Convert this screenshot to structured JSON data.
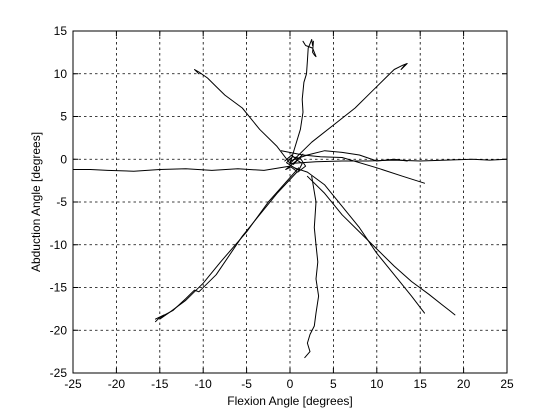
{
  "chart_data": {
    "type": "line",
    "title": "",
    "xlabel": "Flexion Angle [degrees]",
    "ylabel": "Abduction Angle [degrees]",
    "xlim": [
      -25,
      25
    ],
    "ylim": [
      -25,
      15
    ],
    "xticks": [
      -25,
      -20,
      -15,
      -10,
      -5,
      0,
      5,
      10,
      15,
      20,
      25
    ],
    "yticks": [
      15,
      10,
      5,
      0,
      -5,
      -10,
      -15,
      -20,
      -25
    ],
    "grid": true,
    "line_color": "#000000",
    "series": [
      {
        "x": [
          0,
          0.6,
          1.2,
          1.5,
          1.4,
          1.6,
          1.9,
          2.0,
          2.1,
          2.3,
          2.5,
          2.6,
          2.7,
          2.6,
          2.8,
          3.0,
          2.6,
          1.8,
          1.5
        ],
        "y": [
          -0.5,
          1.5,
          3.5,
          5.5,
          7.0,
          9.0,
          10.0,
          11.5,
          13.0,
          13.5,
          14.0,
          13.3,
          13.8,
          12.5,
          12.2,
          12.0,
          13.0,
          13.3,
          13.8
        ]
      },
      {
        "x": [
          0,
          2.5,
          5.0,
          7.5,
          9.5,
          11.0,
          12.0,
          13.0,
          13.5,
          12.8,
          13.2
        ],
        "y": [
          -0.5,
          2.0,
          4.0,
          6.0,
          8.0,
          9.5,
          10.5,
          11.0,
          11.2,
          10.5,
          11.0
        ]
      },
      {
        "x": [
          0,
          3,
          6,
          9,
          12,
          15,
          18,
          21,
          23,
          25
        ],
        "y": [
          -0.5,
          -0.3,
          -0.2,
          -0.2,
          -0.1,
          -0.2,
          -0.1,
          0.0,
          -0.1,
          0.0
        ]
      },
      {
        "x": [
          0.5,
          2,
          4,
          6,
          8,
          10,
          12,
          14,
          15.5
        ],
        "y": [
          -1.0,
          -1.5,
          -3.0,
          -5.5,
          -8.0,
          -11.0,
          -13.5,
          -16.0,
          -18.0
        ]
      },
      {
        "x": [
          2,
          4,
          6,
          8,
          10,
          12,
          14,
          16,
          17.5,
          18.5,
          19
        ],
        "y": [
          -2,
          -4,
          -6.5,
          -8.5,
          -10.5,
          -12.5,
          -14.3,
          -15.8,
          -17.0,
          -17.8,
          -18.2
        ]
      },
      {
        "x": [
          2.5,
          3.0,
          2.8,
          3.0,
          3.2,
          3.0,
          3.3,
          3.0,
          2.8,
          2.3,
          2.0,
          2.3,
          1.7
        ],
        "y": [
          -2,
          -5,
          -8,
          -10,
          -12,
          -14,
          -16,
          -18,
          -19.5,
          -20.5,
          -21.5,
          -22.5,
          -23.2
        ]
      },
      {
        "x": [
          0.8,
          -1.5,
          -3.5,
          -5.5,
          -8.5,
          -10.5,
          -11.0,
          -12.0,
          -13.5,
          -15.0,
          -15.5
        ],
        "y": [
          -1.5,
          -4.0,
          -6.5,
          -9.0,
          -13.5,
          -15.5,
          -15.3,
          -16.3,
          -17.7,
          -18.5,
          -19.0
        ]
      },
      {
        "x": [
          1.0,
          -2.5,
          -5.0,
          -8.0,
          -10.0,
          -12.0,
          -14.0,
          -15.0,
          -14.5,
          -15.5
        ],
        "y": [
          -1.0,
          -5.0,
          -8.5,
          -12.0,
          -14.5,
          -16.5,
          -18.0,
          -18.7,
          -18.2,
          -18.7
        ]
      },
      {
        "x": [
          0,
          -3,
          -6,
          -9,
          -12,
          -15,
          -18,
          -21,
          -23,
          -25
        ],
        "y": [
          -0.8,
          -1.3,
          -1.1,
          -1.3,
          -1.1,
          -1.2,
          -1.4,
          -1.3,
          -1.2,
          -1.2
        ]
      },
      {
        "x": [
          0,
          -1.5,
          -3.5,
          -5.5,
          -7.5,
          -8.5,
          -9.5,
          -10.5,
          -11.0,
          -10.5
        ],
        "y": [
          -0.5,
          1.5,
          3.5,
          6.0,
          7.5,
          8.5,
          9.5,
          10.2,
          10.5,
          10.0
        ]
      },
      {
        "x": [
          -1.0,
          1.5,
          3.5,
          6.0,
          10.0,
          13.0,
          15.5
        ],
        "y": [
          1.0,
          0.5,
          0.3,
          0.2,
          -1.0,
          -2.0,
          -2.8
        ]
      },
      {
        "x": [
          0,
          2,
          4,
          6,
          8,
          10,
          12,
          13.5
        ],
        "y": [
          -0.2,
          0.5,
          1.0,
          0.8,
          0.5,
          -0.2,
          0.0,
          -0.2
        ]
      },
      {
        "x": [
          -0.6,
          0.2,
          0.8,
          1.4,
          1.0,
          0.2,
          -0.4,
          0.3,
          1.2,
          1.8,
          0.9,
          0.1,
          -0.5,
          0.6,
          1.5,
          0.4
        ],
        "y": [
          -0.2,
          0.5,
          -0.1,
          -0.5,
          -1.3,
          -0.8,
          -0.4,
          0.3,
          0.1,
          -0.8,
          -1.5,
          -0.9,
          -1.2,
          -0.3,
          0.6,
          -0.6
        ]
      }
    ]
  }
}
